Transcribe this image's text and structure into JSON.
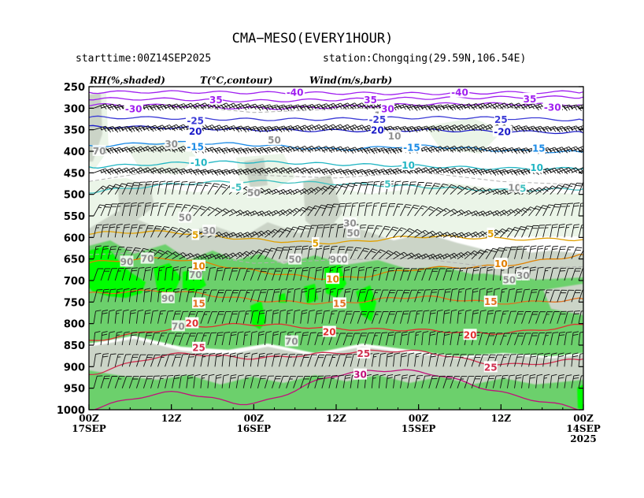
{
  "title": "CMA−MESO(EVERY1HOUR)",
  "starttime": "starttime:00Z14SEP2025",
  "station": "station:Chongqing(29.59N,106.54E)",
  "legend": {
    "rh": "RH(%,shaded)",
    "t": "T(°C,contour)",
    "wind": "Wind(m/s,barb)"
  },
  "chart_data": {
    "type": "heatmap",
    "x_axis": {
      "reversed": true,
      "ticks": [
        {
          "line1": "00Z",
          "line2": "17SEP",
          "line3": "",
          "hours": 72
        },
        {
          "line1": "12Z",
          "line2": "",
          "line3": "",
          "hours": 60
        },
        {
          "line1": "00Z",
          "line2": "16SEP",
          "line3": "",
          "hours": 48
        },
        {
          "line1": "12Z",
          "line2": "",
          "line3": "",
          "hours": 36
        },
        {
          "line1": "00Z",
          "line2": "15SEP",
          "line3": "",
          "hours": 24
        },
        {
          "line1": "12Z",
          "line2": "",
          "line3": "",
          "hours": 12
        },
        {
          "line1": "00Z",
          "line2": "14SEP",
          "line3": "2025",
          "hours": 0
        }
      ]
    },
    "y_axis": {
      "label": "",
      "reversed": true,
      "range": [
        250,
        1000
      ],
      "ticks": [
        250,
        300,
        350,
        400,
        450,
        500,
        550,
        600,
        650,
        700,
        750,
        800,
        850,
        900,
        950,
        1000
      ]
    },
    "rh_shading": {
      "colors": {
        "40": "#ebf5e8",
        "60": "#cbd4c7",
        "80": "#6cd06c",
        "90": "#00ff00"
      },
      "contour_labels": [
        {
          "text": "70",
          "hours": 70.5,
          "p": 398
        },
        {
          "text": "30",
          "hours": 60,
          "p": 382
        },
        {
          "text": "50",
          "hours": 58,
          "p": 553
        },
        {
          "text": "30",
          "hours": 54.5,
          "p": 583
        },
        {
          "text": "50",
          "hours": 48,
          "p": 495
        },
        {
          "text": "50",
          "hours": 45,
          "p": 373
        },
        {
          "text": "50",
          "hours": 42,
          "p": 650
        },
        {
          "text": "30",
          "hours": 34,
          "p": 566
        },
        {
          "text": "50",
          "hours": 33.5,
          "p": 588
        },
        {
          "text": "10",
          "hours": 29.5,
          "p": 315
        },
        {
          "text": "10",
          "hours": 27.5,
          "p": 363
        },
        {
          "text": "10",
          "hours": 10,
          "p": 483
        },
        {
          "text": "50",
          "hours": 10.8,
          "p": 697
        },
        {
          "text": "30",
          "hours": 8.8,
          "p": 687
        },
        {
          "text": "90",
          "hours": 66.5,
          "p": 655
        },
        {
          "text": "70",
          "hours": 63.5,
          "p": 648
        },
        {
          "text": "90",
          "hours": 60.5,
          "p": 740
        },
        {
          "text": "70",
          "hours": 56.5,
          "p": 685
        },
        {
          "text": "70",
          "hours": 59,
          "p": 805
        },
        {
          "text": "70",
          "hours": 42.5,
          "p": 840
        },
        {
          "text": "90",
          "hours": 36,
          "p": 650
        },
        {
          "text": "0",
          "hours": 34.8,
          "p": 650
        }
      ]
    },
    "temperature_contours": [
      {
        "value": -40,
        "color": "#a020f0",
        "p": [
          263,
          262,
          264,
          265,
          266,
          264,
          262
        ]
      },
      {
        "value": -35,
        "color": "#a020f0",
        "p": [
          278,
          279,
          283,
          280,
          277,
          275,
          274
        ]
      },
      {
        "value": -30,
        "color": "#a020f0",
        "p": [
          292,
          294,
          300,
          297,
          291,
          290,
          292
        ]
      },
      {
        "value": -25,
        "color": "#3b3bd6",
        "p": [
          321,
          323,
          326,
          325,
          322,
          323,
          328
        ]
      },
      {
        "value": -20,
        "color": "#1c1cc8",
        "p": [
          343,
          345,
          350,
          352,
          351,
          354,
          357
        ]
      },
      {
        "value": -15,
        "color": "#1a8ae6",
        "p": [
          389,
          380,
          385,
          395,
          388,
          398,
          402
        ]
      },
      {
        "value": -10,
        "color": "#22b6c4",
        "p": [
          437,
          428,
          425,
          430,
          434,
          440,
          440
        ]
      },
      {
        "value": -5,
        "color": "#40c0c0",
        "p": [
          495,
          477,
          470,
          475,
          482,
          490,
          487
        ]
      },
      {
        "value": 5,
        "color": "#e0a000",
        "p": [
          590,
          588,
          605,
          612,
          598,
          603,
          605
        ]
      },
      {
        "value": 10,
        "color": "#e08000",
        "p": [
          658,
          650,
          677,
          695,
          673,
          665,
          640
        ]
      },
      {
        "value": 15,
        "color": "#e07020",
        "p": [
          730,
          725,
          745,
          752,
          738,
          752,
          743
        ]
      },
      {
        "value": 20,
        "color": "#e03030",
        "p": [
          842,
          812,
          802,
          812,
          815,
          822,
          802
        ]
      },
      {
        "value": 25,
        "color": "#d03050",
        "p": [
          920,
          872,
          880,
          868,
          865,
          895,
          882
        ]
      },
      {
        "value": 30,
        "color": "#c0107a",
        "p": [
          1000,
          960,
          985,
          920,
          912,
          960,
          1000
        ]
      }
    ],
    "temperature_labels": [
      {
        "text": "-40",
        "hours": 42,
        "p": 262,
        "color": "#a020f0"
      },
      {
        "text": "-40",
        "hours": 18,
        "p": 262,
        "color": "#a020f0"
      },
      {
        "text": "35",
        "hours": 53.5,
        "p": 279,
        "color": "#a020f0"
      },
      {
        "text": "35",
        "hours": 31,
        "p": 279,
        "color": "#a020f0"
      },
      {
        "text": "35",
        "hours": 7.8,
        "p": 277,
        "color": "#a020f0"
      },
      {
        "text": "-30",
        "hours": 65.5,
        "p": 300,
        "color": "#a020f0"
      },
      {
        "text": "30",
        "hours": 28.5,
        "p": 300,
        "color": "#a020f0"
      },
      {
        "text": "-30",
        "hours": 4.5,
        "p": 297,
        "color": "#a020f0"
      },
      {
        "text": "-25",
        "hours": 56.5,
        "p": 328,
        "color": "#3b3bd6"
      },
      {
        "text": "-25",
        "hours": 30,
        "p": 325,
        "color": "#3b3bd6"
      },
      {
        "text": "25",
        "hours": 12,
        "p": 325,
        "color": "#3b3bd6"
      },
      {
        "text": "20",
        "hours": 56.5,
        "p": 352,
        "color": "#1c1cc8"
      },
      {
        "text": "20",
        "hours": 30,
        "p": 350,
        "color": "#1c1cc8"
      },
      {
        "text": "-20",
        "hours": 11.8,
        "p": 353,
        "color": "#1c1cc8"
      },
      {
        "text": "-15",
        "hours": 56.5,
        "p": 388,
        "color": "#1a8ae6"
      },
      {
        "text": "-15",
        "hours": 25,
        "p": 390,
        "color": "#1a8ae6"
      },
      {
        "text": "15",
        "hours": 6.5,
        "p": 392,
        "color": "#1a8ae6"
      },
      {
        "text": "-10",
        "hours": 56,
        "p": 425,
        "color": "#22b6c4"
      },
      {
        "text": "10",
        "hours": 25.5,
        "p": 431,
        "color": "#22b6c4"
      },
      {
        "text": "10",
        "hours": 6.8,
        "p": 437,
        "color": "#22b6c4"
      },
      {
        "text": "-5",
        "hours": 50.5,
        "p": 482,
        "color": "#40c0c0"
      },
      {
        "text": "5",
        "hours": 28.5,
        "p": 475,
        "color": "#40c0c0"
      },
      {
        "text": "5",
        "hours": 8.8,
        "p": 485,
        "color": "#40c0c0"
      },
      {
        "text": "5",
        "hours": 56.5,
        "p": 593,
        "color": "#e0a000"
      },
      {
        "text": "5",
        "hours": 39,
        "p": 612,
        "color": "#e0a000"
      },
      {
        "text": "5",
        "hours": 13.5,
        "p": 590,
        "color": "#e0a000"
      },
      {
        "text": "10",
        "hours": 56,
        "p": 665,
        "color": "#e08000"
      },
      {
        "text": "10",
        "hours": 36.5,
        "p": 695,
        "color": "#e08000"
      },
      {
        "text": "10",
        "hours": 12,
        "p": 660,
        "color": "#e08000"
      },
      {
        "text": "15",
        "hours": 56,
        "p": 752,
        "color": "#e07020"
      },
      {
        "text": "15",
        "hours": 35.5,
        "p": 752,
        "color": "#e07020"
      },
      {
        "text": "15",
        "hours": 13.5,
        "p": 748,
        "color": "#e07020"
      },
      {
        "text": "20",
        "hours": 57,
        "p": 798,
        "color": "#e03030"
      },
      {
        "text": "20",
        "hours": 37,
        "p": 818,
        "color": "#e03030"
      },
      {
        "text": "20",
        "hours": 16.5,
        "p": 825,
        "color": "#e03030"
      },
      {
        "text": "25",
        "hours": 56,
        "p": 855,
        "color": "#d03050"
      },
      {
        "text": "25",
        "hours": 32,
        "p": 868,
        "color": "#d03050"
      },
      {
        "text": "25",
        "hours": 13.5,
        "p": 900,
        "color": "#d03050"
      },
      {
        "text": "30",
        "hours": 32.5,
        "p": 917,
        "color": "#c0107a"
      }
    ],
    "wind_barbs": {
      "levels": [
        300,
        350,
        400,
        450,
        500,
        550,
        600,
        650,
        700,
        750,
        800,
        850,
        900,
        950
      ],
      "interval_hours": 1,
      "flag_color": "#000000"
    }
  }
}
